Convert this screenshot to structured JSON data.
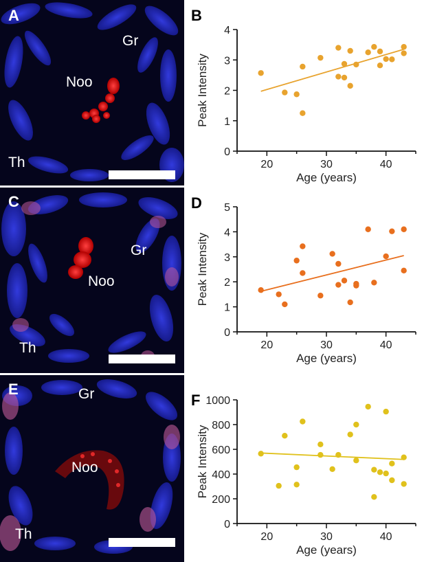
{
  "figure_title": "",
  "micrographs": [
    {
      "letter": "A",
      "labels": {
        "gr": "Gr",
        "noo": "Noo",
        "th": "Th"
      }
    },
    {
      "letter": "C",
      "labels": {
        "gr": "Gr",
        "noo": "Noo",
        "th": "Th"
      }
    },
    {
      "letter": "E",
      "labels": {
        "gr": "Gr",
        "noo": "Noo",
        "th": "Th"
      }
    }
  ],
  "colors": {
    "panel_b": "#e8a32e",
    "panel_d": "#e86f1e",
    "panel_f": "#e0c11c",
    "nucleus_blue": "#2a32e8",
    "signal_red": "#ff1e1e"
  },
  "chart_data": [
    {
      "letter": "B",
      "type": "scatter",
      "title": "",
      "xlabel": "Age (years)",
      "ylabel": "Peak Intensity",
      "xlim": [
        15,
        45
      ],
      "ylim": [
        0,
        4
      ],
      "xticks": [
        20,
        30,
        40
      ],
      "yticks": [
        0,
        1,
        2,
        3,
        4
      ],
      "points": [
        [
          19,
          2.57
        ],
        [
          23,
          1.93
        ],
        [
          25,
          1.87
        ],
        [
          26,
          2.78
        ],
        [
          26,
          1.25
        ],
        [
          29,
          3.07
        ],
        [
          32,
          3.4
        ],
        [
          32,
          2.45
        ],
        [
          33,
          2.87
        ],
        [
          33,
          2.42
        ],
        [
          34,
          3.3
        ],
        [
          34,
          2.15
        ],
        [
          35,
          2.85
        ],
        [
          37,
          3.25
        ],
        [
          38,
          3.43
        ],
        [
          39,
          3.28
        ],
        [
          39,
          2.82
        ],
        [
          40,
          3.03
        ],
        [
          41,
          3.02
        ],
        [
          43,
          3.43
        ],
        [
          43,
          3.22
        ]
      ],
      "trendline": [
        [
          19,
          1.97
        ],
        [
          43,
          3.35
        ]
      ]
    },
    {
      "letter": "D",
      "type": "scatter",
      "title": "",
      "xlabel": "Age (years)",
      "ylabel": "Peak Intensity",
      "xlim": [
        15,
        45
      ],
      "ylim": [
        0,
        5
      ],
      "xticks": [
        20,
        30,
        40
      ],
      "yticks": [
        0,
        1,
        2,
        3,
        4,
        5
      ],
      "points": [
        [
          19,
          1.67
        ],
        [
          22,
          1.5
        ],
        [
          23,
          1.1
        ],
        [
          25,
          2.85
        ],
        [
          26,
          3.42
        ],
        [
          26,
          2.35
        ],
        [
          29,
          1.45
        ],
        [
          31,
          3.12
        ],
        [
          32,
          2.72
        ],
        [
          32,
          1.88
        ],
        [
          33,
          2.05
        ],
        [
          34,
          1.18
        ],
        [
          35,
          1.92
        ],
        [
          35,
          1.85
        ],
        [
          37,
          4.1
        ],
        [
          38,
          1.97
        ],
        [
          40,
          3.02
        ],
        [
          41,
          4.02
        ],
        [
          43,
          4.1
        ],
        [
          43,
          2.45
        ]
      ],
      "trendline": [
        [
          19,
          1.62
        ],
        [
          43,
          3.05
        ]
      ]
    },
    {
      "letter": "F",
      "type": "scatter",
      "title": "",
      "xlabel": "Age (years)",
      "ylabel": "Peak Intensity",
      "xlim": [
        15,
        45
      ],
      "ylim": [
        0,
        1000
      ],
      "xticks": [
        20,
        30,
        40
      ],
      "yticks": [
        0,
        200,
        400,
        600,
        800,
        1000
      ],
      "points": [
        [
          19,
          565
        ],
        [
          22,
          305
        ],
        [
          23,
          710
        ],
        [
          25,
          455
        ],
        [
          25,
          315
        ],
        [
          26,
          825
        ],
        [
          29,
          640
        ],
        [
          29,
          555
        ],
        [
          31,
          440
        ],
        [
          32,
          555
        ],
        [
          34,
          720
        ],
        [
          35,
          800
        ],
        [
          35,
          510
        ],
        [
          37,
          945
        ],
        [
          38,
          435
        ],
        [
          38,
          215
        ],
        [
          39,
          415
        ],
        [
          40,
          905
        ],
        [
          40,
          405
        ],
        [
          41,
          485
        ],
        [
          41,
          350
        ],
        [
          43,
          535
        ],
        [
          43,
          320
        ]
      ],
      "trendline": [
        [
          19,
          570
        ],
        [
          43,
          518
        ]
      ]
    }
  ]
}
